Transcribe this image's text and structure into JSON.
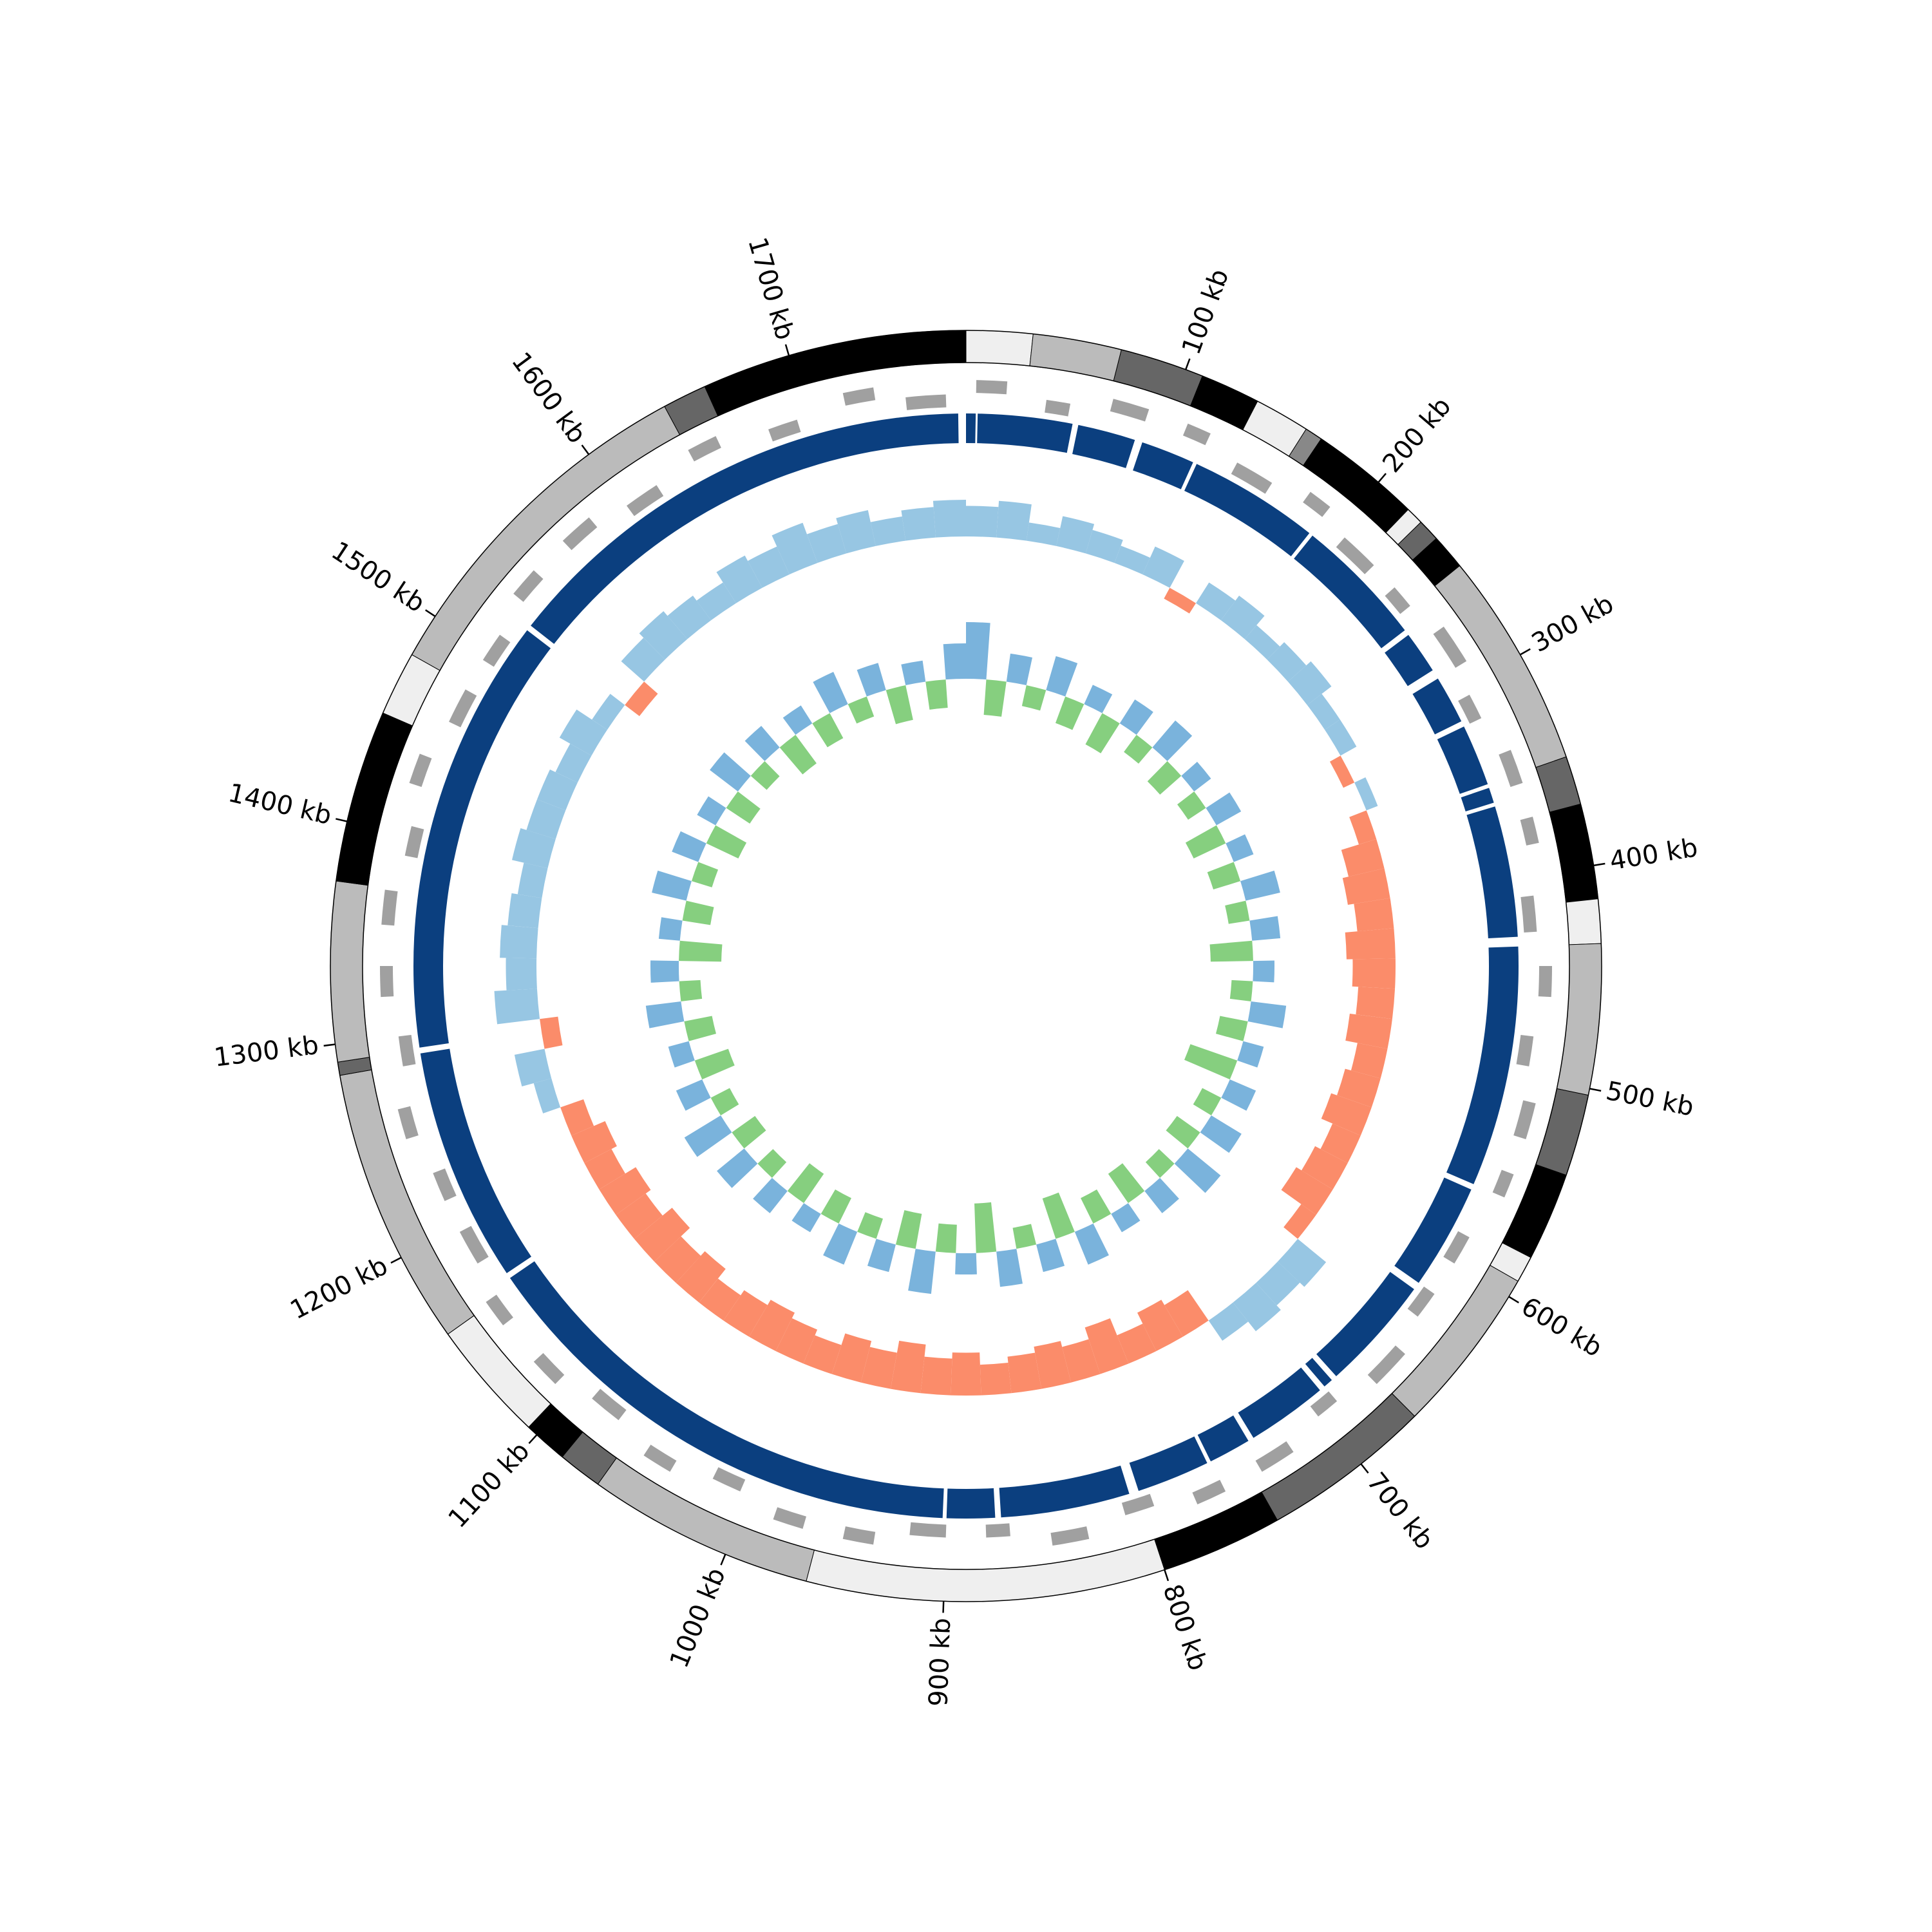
{
  "chart_data": {
    "type": "circular",
    "xlim": [
      0,
      1780
    ],
    "xticks": [
      {
        "value": 100,
        "label": "100 kb"
      },
      {
        "value": 200,
        "label": "200 kb"
      },
      {
        "value": 300,
        "label": "300 kb"
      },
      {
        "value": 400,
        "label": "400 kb"
      },
      {
        "value": 500,
        "label": "500 kb"
      },
      {
        "value": 600,
        "label": "600 kb"
      },
      {
        "value": 700,
        "label": "700 kb"
      },
      {
        "value": 800,
        "label": "800 kb"
      },
      {
        "value": 900,
        "label": "900 kb"
      },
      {
        "value": 1000,
        "label": "1000 kb"
      },
      {
        "value": 1100,
        "label": "1100 kb"
      },
      {
        "value": 1200,
        "label": "1200 kb"
      },
      {
        "value": 1300,
        "label": "1300 kb"
      },
      {
        "value": 1400,
        "label": "1400 kb"
      },
      {
        "value": 1500,
        "label": "1500 kb"
      },
      {
        "value": 1600,
        "label": "1600 kb"
      },
      {
        "value": 1700,
        "label": "1700 kb"
      }
    ],
    "outer_ring": [
      {
        "start": 0,
        "end": 30,
        "color": "#efefef"
      },
      {
        "start": 30,
        "end": 70,
        "color": "#bbbbbb"
      },
      {
        "start": 70,
        "end": 108,
        "color": "#666666"
      },
      {
        "start": 108,
        "end": 135,
        "color": "#000000"
      },
      {
        "start": 135,
        "end": 160,
        "color": "#efefef"
      },
      {
        "start": 160,
        "end": 168,
        "color": "#888888"
      },
      {
        "start": 168,
        "end": 218,
        "color": "#000000"
      },
      {
        "start": 218,
        "end": 226,
        "color": "#efefef"
      },
      {
        "start": 226,
        "end": 236,
        "color": "#666666"
      },
      {
        "start": 236,
        "end": 252,
        "color": "#000000"
      },
      {
        "start": 252,
        "end": 350,
        "color": "#bbbbbb"
      },
      {
        "start": 350,
        "end": 372,
        "color": "#666666"
      },
      {
        "start": 372,
        "end": 415,
        "color": "#000000"
      },
      {
        "start": 415,
        "end": 435,
        "color": "#efefef"
      },
      {
        "start": 435,
        "end": 503,
        "color": "#bbbbbb"
      },
      {
        "start": 503,
        "end": 540,
        "color": "#666666"
      },
      {
        "start": 540,
        "end": 580,
        "color": "#000000"
      },
      {
        "start": 580,
        "end": 592,
        "color": "#efefef"
      },
      {
        "start": 592,
        "end": 668,
        "color": "#bbbbbb"
      },
      {
        "start": 668,
        "end": 745,
        "color": "#666666"
      },
      {
        "start": 745,
        "end": 800,
        "color": "#000000"
      },
      {
        "start": 800,
        "end": 962,
        "color": "#efefef"
      },
      {
        "start": 962,
        "end": 1065,
        "color": "#bbbbbb"
      },
      {
        "start": 1065,
        "end": 1085,
        "color": "#666666"
      },
      {
        "start": 1085,
        "end": 1105,
        "color": "#000000"
      },
      {
        "start": 1105,
        "end": 1160,
        "color": "#efefef"
      },
      {
        "start": 1160,
        "end": 1286,
        "color": "#bbbbbb"
      },
      {
        "start": 1286,
        "end": 1292,
        "color": "#666666"
      },
      {
        "start": 1292,
        "end": 1373,
        "color": "#bbbbbb"
      },
      {
        "start": 1373,
        "end": 1451,
        "color": "#000000"
      },
      {
        "start": 1451,
        "end": 1480,
        "color": "#efefef"
      },
      {
        "start": 1480,
        "end": 1640,
        "color": "#bbbbbb"
      },
      {
        "start": 1640,
        "end": 1660,
        "color": "#666666"
      },
      {
        "start": 1660,
        "end": 1780,
        "color": "#000000"
      }
    ],
    "genes": {
      "color": "#a0a0a0",
      "start": [
        5,
        40,
        72,
        110,
        140,
        178,
        205,
        240,
        270,
        305,
        338,
        372,
        410,
        445,
        480,
        512,
        548,
        585,
        618,
        650,
        690,
        722,
        760,
        795,
        830,
        868,
        900,
        935,
        970,
        1005,
        1040,
        1075,
        1110,
        1148,
        1180,
        1215,
        1250,
        1285,
        1320,
        1355,
        1390,
        1425,
        1460,
        1495,
        1530,
        1565,
        1600,
        1640,
        1680,
        1720,
        1750
      ],
      "end": [
        20,
        52,
        90,
        122,
        160,
        190,
        225,
        252,
        290,
        318,
        355,
        385,
        428,
        460,
        495,
        530,
        560,
        600,
        632,
        670,
        702,
        740,
        775,
        810,
        848,
        880,
        918,
        950,
        985,
        1020,
        1055,
        1092,
        1125,
        1162,
        1198,
        1230,
        1265,
        1300,
        1335,
        1372,
        1405,
        1440,
        1478,
        1510,
        1545,
        1582,
        1618,
        1655,
        1695,
        1735,
        1770
      ],
      "strand": [
        1,
        -1,
        1,
        1,
        -1,
        1,
        -1,
        -1,
        1,
        -1,
        1,
        1,
        -1,
        1,
        -1,
        1,
        1,
        -1,
        -1,
        1,
        -1,
        1,
        1,
        -1,
        1,
        -1,
        -1,
        1,
        1,
        -1,
        1,
        -1,
        1,
        1,
        -1,
        -1,
        1,
        -1,
        1,
        1,
        -1,
        1,
        -1,
        -1,
        1,
        1,
        -1,
        1,
        -1,
        1,
        -1
      ]
    },
    "contigs": {
      "color": "#0b3f7f",
      "segments": [
        [
          0,
          5
        ],
        [
          6,
          55
        ],
        [
          58,
          88
        ],
        [
          92,
          120
        ],
        [
          122,
          190
        ],
        [
          192,
          260
        ],
        [
          263,
          285
        ],
        [
          290,
          315
        ],
        [
          318,
          350
        ],
        [
          352,
          360
        ],
        [
          362,
          430
        ],
        [
          435,
          560
        ],
        [
          563,
          618
        ],
        [
          622,
          682
        ],
        [
          685,
          690
        ],
        [
          693,
          735
        ],
        [
          738,
          760
        ],
        [
          762,
          800
        ],
        [
          805,
          872
        ],
        [
          875,
          900
        ],
        [
          902,
          1165
        ],
        [
          1168,
          1290
        ],
        [
          1293,
          1520
        ],
        [
          1523,
          1776
        ]
      ]
    },
    "x": [
      0,
      20,
      40,
      60,
      80,
      100,
      120,
      140,
      160,
      180,
      200,
      220,
      240,
      260,
      280,
      300,
      320,
      340,
      360,
      380,
      400,
      420,
      440,
      460,
      480,
      500,
      520,
      540,
      560,
      580,
      600,
      620,
      640,
      660,
      680,
      700,
      720,
      740,
      760,
      780,
      800,
      820,
      840,
      860,
      880,
      900,
      920,
      940,
      960,
      980,
      1000,
      1020,
      1040,
      1060,
      1080,
      1100,
      1120,
      1140,
      1160,
      1180,
      1200,
      1220,
      1240,
      1260,
      1280,
      1300,
      1320,
      1340,
      1360,
      1380,
      1400,
      1420,
      1440,
      1460,
      1480,
      1500,
      1520,
      1540,
      1560,
      1580,
      1600,
      1620,
      1640,
      1660,
      1680,
      1700,
      1720,
      1740,
      1760
    ],
    "gc_content": {
      "ylim": [
        -1,
        1
      ],
      "color_positive": "#97c6e3",
      "color_negative": "#fb8c6a",
      "values": [
        0.5,
        0.6,
        0.3,
        0.5,
        0.4,
        0.3,
        0.5,
        -0.2,
        0.4,
        0.5,
        0.3,
        0.4,
        0.5,
        0.3,
        0.3,
        -0.2,
        0.2,
        -0.3,
        -0.6,
        -0.7,
        -0.6,
        -0.8,
        -0.7,
        -0.6,
        -0.7,
        -0.5,
        -0.6,
        -0.7,
        -0.5,
        -0.6,
        -0.7,
        -0.3,
        0.6,
        0.5,
        0.6,
        0.4,
        -0.6,
        -0.7,
        -0.5,
        -0.8,
        -0.6,
        -0.7,
        -0.6,
        -0.5,
        -0.7,
        -0.6,
        -0.8,
        -0.6,
        -0.7,
        -0.5,
        -0.6,
        -0.7,
        -0.6,
        -0.5,
        -0.7,
        -0.6,
        -0.8,
        -0.6,
        -0.7,
        -0.5,
        -0.6,
        -0.4,
        0.3,
        0.5,
        -0.3,
        0.7,
        0.5,
        0.6,
        0.5,
        0.4,
        0.6,
        0.5,
        0.5,
        0.4,
        0.6,
        0.3,
        -0.3,
        0.5,
        0.6,
        0.5,
        0.4,
        0.6,
        0.5,
        0.7,
        0.5,
        0.6,
        0.4,
        0.5,
        0.6
      ]
    },
    "gc_skew": {
      "ylim": [
        -1,
        1
      ],
      "color_positive": "#7ab3dc",
      "color_negative": "#86cf7f",
      "values": [
        0.8,
        -0.5,
        0.4,
        -0.3,
        0.5,
        -0.4,
        0.3,
        -0.5,
        0.4,
        -0.3,
        0.5,
        -0.4,
        0.3,
        -0.3,
        0.4,
        -0.5,
        0.3,
        -0.4,
        0.5,
        -0.3,
        0.4,
        -0.6,
        0.3,
        -0.3,
        0.5,
        -0.4,
        0.3,
        -0.7,
        0.4,
        -0.3,
        0.5,
        -0.4,
        0.6,
        -0.3,
        0.4,
        -0.5,
        0.3,
        -0.4,
        0.5,
        -0.6,
        0.4,
        -0.3,
        0.5,
        -0.7,
        0.3,
        -0.4,
        0.6,
        -0.5,
        0.4,
        -0.3,
        0.5,
        -0.4,
        0.3,
        -0.5,
        0.4,
        -0.3,
        0.5,
        -0.4,
        0.6,
        -0.3,
        0.4,
        -0.5,
        0.3,
        -0.4,
        0.5,
        -0.3,
        0.4,
        -0.6,
        0.3,
        -0.4,
        0.5,
        -0.3,
        0.4,
        -0.5,
        0.3,
        -0.4,
        0.5,
        -0.3,
        0.4,
        -0.5,
        0.3,
        -0.4,
        0.5,
        -0.3,
        0.4,
        -0.5,
        0.3,
        -0.4,
        0.5
      ]
    }
  }
}
